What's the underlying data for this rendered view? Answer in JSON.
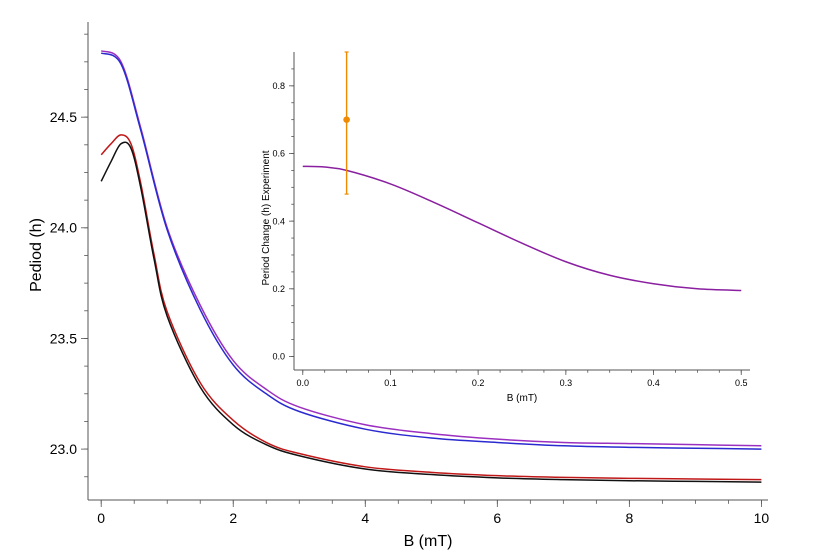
{
  "chart_data": [
    {
      "id": "main",
      "type": "line",
      "xlabel": "B (mT)",
      "ylabel": "Pediod (h)",
      "xlim": [
        -0.2,
        10.1
      ],
      "ylim": [
        22.77,
        24.93
      ],
      "x_ticks": [
        0,
        2,
        4,
        6,
        8,
        10
      ],
      "x_tick_labels": [
        "0",
        "2",
        "4",
        "6",
        "8",
        "10"
      ],
      "y_ticks": [
        23.0,
        23.5,
        24.0,
        24.5
      ],
      "y_tick_labels": [
        "23.0",
        "23.5",
        "24.0",
        "24.5"
      ],
      "grid": false,
      "series": [
        {
          "color": "#9b2fc0",
          "points": [
            [
              0,
              24.8
            ],
            [
              0.3,
              24.75
            ],
            [
              0.6,
              24.45
            ],
            [
              1.0,
              24.0
            ],
            [
              1.5,
              23.65
            ],
            [
              2.0,
              23.4
            ],
            [
              2.5,
              23.27
            ],
            [
              3,
              23.19
            ],
            [
              4,
              23.11
            ],
            [
              5,
              23.07
            ],
            [
              6,
              23.045
            ],
            [
              7,
              23.03
            ],
            [
              8,
              23.025
            ],
            [
              9,
              23.02
            ],
            [
              10,
              23.015
            ]
          ]
        },
        {
          "color": "#2a2ad0",
          "points": [
            [
              0,
              24.79
            ],
            [
              0.3,
              24.74
            ],
            [
              0.6,
              24.44
            ],
            [
              1.0,
              23.99
            ],
            [
              1.5,
              23.63
            ],
            [
              2.0,
              23.38
            ],
            [
              2.5,
              23.25
            ],
            [
              3,
              23.17
            ],
            [
              4,
              23.09
            ],
            [
              5,
              23.05
            ],
            [
              6,
              23.03
            ],
            [
              7,
              23.015
            ],
            [
              8,
              23.008
            ],
            [
              9,
              23.004
            ],
            [
              10,
              23.0
            ]
          ]
        },
        {
          "color": "#c01818",
          "points": [
            [
              0,
              24.33
            ],
            [
              0.15,
              24.38
            ],
            [
              0.3,
              24.42
            ],
            [
              0.45,
              24.38
            ],
            [
              0.6,
              24.2
            ],
            [
              0.8,
              23.88
            ],
            [
              1.0,
              23.62
            ],
            [
              1.5,
              23.3
            ],
            [
              2.0,
              23.13
            ],
            [
              2.5,
              23.03
            ],
            [
              3,
              22.98
            ],
            [
              4,
              22.92
            ],
            [
              5,
              22.895
            ],
            [
              6,
              22.88
            ],
            [
              7,
              22.872
            ],
            [
              8,
              22.868
            ],
            [
              9,
              22.865
            ],
            [
              10,
              22.862
            ]
          ]
        },
        {
          "color": "#111111",
          "points": [
            [
              0,
              24.21
            ],
            [
              0.15,
              24.3
            ],
            [
              0.3,
              24.38
            ],
            [
              0.45,
              24.36
            ],
            [
              0.6,
              24.18
            ],
            [
              0.8,
              23.86
            ],
            [
              1.0,
              23.6
            ],
            [
              1.5,
              23.28
            ],
            [
              2.0,
              23.11
            ],
            [
              2.5,
              23.02
            ],
            [
              3,
              22.97
            ],
            [
              4,
              22.91
            ],
            [
              5,
              22.885
            ],
            [
              6,
              22.87
            ],
            [
              7,
              22.862
            ],
            [
              8,
              22.857
            ],
            [
              9,
              22.854
            ],
            [
              10,
              22.851
            ]
          ]
        }
      ]
    },
    {
      "id": "inset",
      "type": "line",
      "xlabel": "B (mT)",
      "ylabel": "Period Change (h) Experiment",
      "xlim": [
        -0.01,
        0.51
      ],
      "ylim": [
        -0.04,
        0.9
      ],
      "x_ticks": [
        0.0,
        0.1,
        0.2,
        0.3,
        0.4,
        0.5
      ],
      "x_tick_labels": [
        "0.0",
        "0.1",
        "0.2",
        "0.3",
        "0.4",
        "0.5"
      ],
      "y_ticks": [
        0.0,
        0.2,
        0.4,
        0.6,
        0.8
      ],
      "y_tick_labels": [
        "0.0",
        "0.2",
        "0.4",
        "0.6",
        "0.8"
      ],
      "grid": false,
      "series": [
        {
          "color": "#8a1fa0",
          "points": [
            [
              0,
              0.562
            ],
            [
              0.025,
              0.56
            ],
            [
              0.05,
              0.55
            ],
            [
              0.1,
              0.51
            ],
            [
              0.15,
              0.455
            ],
            [
              0.2,
              0.395
            ],
            [
              0.25,
              0.335
            ],
            [
              0.3,
              0.28
            ],
            [
              0.35,
              0.24
            ],
            [
              0.4,
              0.215
            ],
            [
              0.45,
              0.2
            ],
            [
              0.5,
              0.195
            ]
          ]
        }
      ],
      "error_points": [
        {
          "color": "#f08a00",
          "x": 0.05,
          "y": 0.7,
          "y_low": 0.48,
          "y_high": 0.9
        }
      ]
    }
  ]
}
